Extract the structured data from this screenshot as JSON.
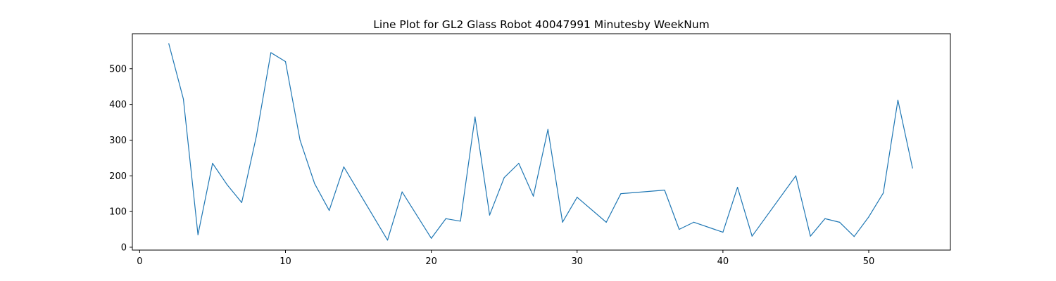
{
  "chart_data": {
    "type": "line",
    "title": "Line Plot for GL2 Glass Robot 40047991 Minutesby WeekNum",
    "xlabel": "",
    "ylabel": "",
    "xlim": [
      -0.5,
      55.6
    ],
    "ylim": [
      -8,
      598
    ],
    "xticks": [
      0,
      10,
      20,
      30,
      40,
      50
    ],
    "yticks": [
      0,
      100,
      200,
      300,
      400,
      500
    ],
    "grid": false,
    "legend": "none",
    "series": [
      {
        "color": "#1f77b4",
        "x": [
          2,
          3,
          4,
          5,
          6,
          7,
          8,
          9,
          10,
          11,
          12,
          13,
          14,
          17,
          18,
          20,
          21,
          22,
          23,
          24,
          25,
          26,
          27,
          28,
          29,
          30,
          32,
          33,
          36,
          37,
          38,
          40,
          41,
          42,
          45,
          46,
          47,
          48,
          49,
          50,
          51,
          52,
          53
        ],
        "y": [
          570,
          415,
          35,
          235,
          175,
          125,
          310,
          545,
          520,
          300,
          178,
          103,
          225,
          20,
          155,
          25,
          80,
          73,
          365,
          90,
          195,
          235,
          143,
          330,
          70,
          140,
          70,
          150,
          160,
          50,
          70,
          42,
          168,
          31,
          200,
          31,
          80,
          70,
          30,
          85,
          152,
          412,
          222
        ]
      }
    ]
  }
}
